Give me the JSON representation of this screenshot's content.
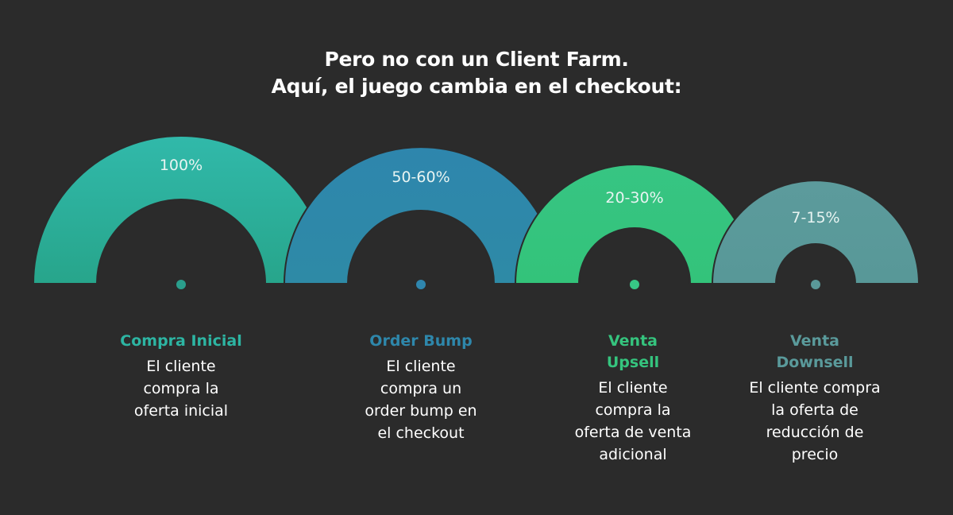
{
  "heading": {
    "line1": "Pero no con un Client Farm.",
    "line2": "Aquí, el juego cambia en el checkout:"
  },
  "stages": [
    {
      "percent": "100%",
      "title_lines": [
        "Compra Inicial"
      ],
      "desc_lines": [
        "El cliente",
        "compra la",
        "oferta inicial"
      ],
      "color": "#2db5a3",
      "color_top": "#31b9aa",
      "color_bottom": "#27a58b",
      "dot_color": "#2a9e8c",
      "title_color": "#2db5a3"
    },
    {
      "percent": "50-60%",
      "title_lines": [
        "Order Bump"
      ],
      "desc_lines": [
        "El cliente",
        "compra un",
        "order bump en",
        "el checkout"
      ],
      "color": "#2e87ab",
      "color_top": "#2e86ad",
      "color_bottom": "#2e8aa6",
      "dot_color": "#2f86ae",
      "title_color": "#2e87ab"
    },
    {
      "percent": "20-30%",
      "title_lines": [
        "Venta",
        "Upsell"
      ],
      "desc_lines": [
        "El cliente",
        "compra la",
        "oferta de venta",
        "adicional"
      ],
      "color": "#35c47e",
      "color_top": "#37c583",
      "color_bottom": "#33c37a",
      "dot_color": "#37c785",
      "title_color": "#35c47e"
    },
    {
      "percent": "7-15%",
      "title_lines": [
        "Venta",
        "Downsell"
      ],
      "desc_lines": [
        "El cliente compra",
        "la oferta de",
        "reducción de",
        "precio"
      ],
      "color": "#5a9a9b",
      "color_top": "#5c9b9c",
      "color_bottom": "#589898",
      "dot_color": "#5a9898",
      "title_color": "#5a9a9b"
    }
  ]
}
